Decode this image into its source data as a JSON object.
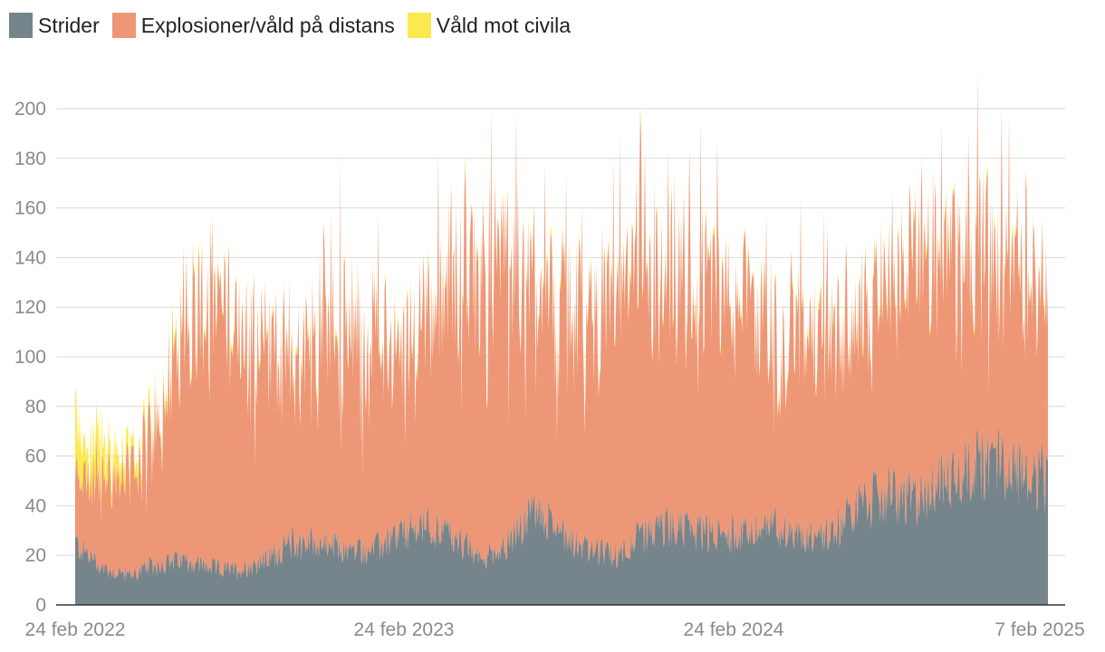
{
  "chart_data": {
    "type": "area",
    "stacked": true,
    "title": "",
    "xlabel": "",
    "ylabel": "",
    "x_tick_labels": [
      "24 feb 2022",
      "24 feb 2023",
      "24 feb 2024",
      "7 feb 2025"
    ],
    "y_ticks": [
      0,
      20,
      40,
      60,
      80,
      100,
      120,
      140,
      160,
      180,
      200
    ],
    "ylim": [
      0,
      215
    ],
    "grid": "horizontal",
    "legend_position": "top-left",
    "x_bin": "month",
    "x": [
      "2022-02",
      "2022-03",
      "2022-04",
      "2022-05",
      "2022-06",
      "2022-07",
      "2022-08",
      "2022-09",
      "2022-10",
      "2022-11",
      "2022-12",
      "2023-01",
      "2023-02",
      "2023-03",
      "2023-04",
      "2023-05",
      "2023-06",
      "2023-07",
      "2023-08",
      "2023-09",
      "2023-10",
      "2023-11",
      "2023-12",
      "2024-01",
      "2024-02",
      "2024-03",
      "2024-04",
      "2024-05",
      "2024-06",
      "2024-07",
      "2024-08",
      "2024-09",
      "2024-10",
      "2024-11",
      "2024-12",
      "2025-01",
      "2025-02"
    ],
    "series": [
      {
        "name": "Strider",
        "color": "#76858c",
        "values": [
          25,
          15,
          12,
          16,
          18,
          15,
          14,
          18,
          25,
          25,
          22,
          22,
          28,
          32,
          28,
          18,
          25,
          38,
          30,
          22,
          20,
          28,
          32,
          30,
          28,
          30,
          32,
          28,
          30,
          40,
          45,
          42,
          50,
          55,
          60,
          55,
          50
        ]
      },
      {
        "name": "Explosioner/våld på distans",
        "color": "#ee9777",
        "values": [
          30,
          40,
          45,
          65,
          110,
          120,
          110,
          100,
          80,
          100,
          105,
          95,
          80,
          95,
          115,
          130,
          130,
          105,
          100,
          105,
          115,
          115,
          105,
          105,
          110,
          100,
          85,
          92,
          85,
          80,
          95,
          115,
          115,
          110,
          90,
          95,
          75
        ]
      },
      {
        "name": "Våld mot civila",
        "color": "#fde84f",
        "values": [
          20,
          12,
          6,
          4,
          3,
          2,
          2,
          2,
          2,
          2,
          2,
          2,
          2,
          2,
          2,
          2,
          2,
          2,
          2,
          2,
          2,
          2,
          2,
          2,
          2,
          2,
          2,
          2,
          2,
          2,
          2,
          2,
          2,
          2,
          2,
          2,
          2
        ]
      }
    ]
  }
}
